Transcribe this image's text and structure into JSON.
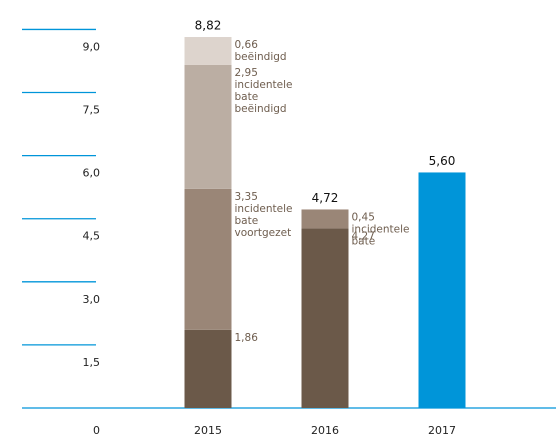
{
  "chart_data": {
    "type": "stacked_bar",
    "categories": [
      "2015",
      "2016",
      "2017"
    ],
    "series": [
      {
        "color": "#6b5949",
        "values": [
          1.86,
          4.27,
          null
        ],
        "value_labels": [
          "1,86",
          "4,27",
          null
        ]
      },
      {
        "color": "#9a8677",
        "values": [
          3.35,
          0.45,
          null
        ],
        "value_labels": [
          "3,35",
          "0,45",
          null
        ],
        "labels": [
          [
            "incidentele",
            "bate",
            "voortgezet"
          ],
          [
            "incidentele",
            "bate"
          ],
          null
        ]
      },
      {
        "color": "#bbaea3",
        "values": [
          2.95,
          null,
          null
        ],
        "value_labels": [
          "2,95",
          null,
          null
        ],
        "labels": [
          [
            "incidentele",
            "bate",
            "beëindigd"
          ],
          null,
          null
        ]
      },
      {
        "color": "#ddd4cd",
        "values": [
          0.66,
          null,
          null
        ],
        "value_labels": [
          "0,66",
          null,
          null
        ],
        "labels": [
          [
            "beëindigd"
          ],
          null,
          null
        ]
      },
      {
        "color": "#0095d9",
        "values": [
          null,
          null,
          5.6
        ]
      }
    ],
    "totals": [
      8.82,
      4.72,
      5.6
    ],
    "total_labels": [
      "8,82",
      "4,72",
      "5,60"
    ],
    "ylim": [
      0,
      9.7
    ],
    "yticks": [
      0,
      {
        "value": 1.5,
        "label": "1,5"
      },
      {
        "value": 3.0,
        "label": "3,0"
      },
      {
        "value": 4.5,
        "label": "4,5"
      },
      {
        "value": 6.0,
        "label": "6,0"
      },
      {
        "value": 7.5,
        "label": "7,5"
      },
      {
        "value": 9.0,
        "label": "9,0"
      }
    ],
    "grid_color": "#0095d9"
  }
}
